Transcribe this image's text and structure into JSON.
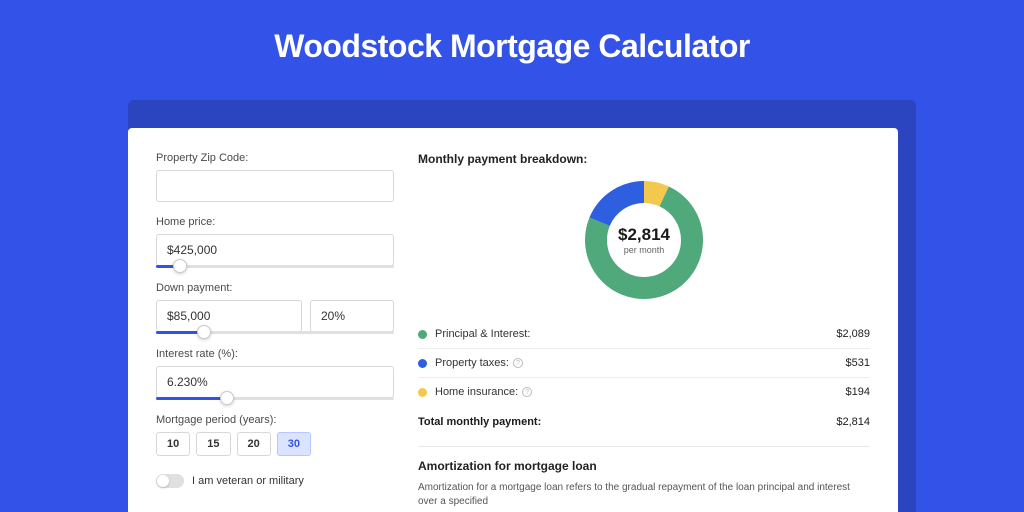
{
  "page": {
    "title": "Woodstock Mortgage Calculator",
    "bg_color": "#3353e8",
    "shadow_color": "#2b44bf",
    "card_bg": "#ffffff"
  },
  "form": {
    "zip": {
      "label": "Property Zip Code:",
      "value": ""
    },
    "price": {
      "label": "Home price:",
      "value": "$425,000",
      "slider_pct": 10
    },
    "down": {
      "label": "Down payment:",
      "amount": "$85,000",
      "pct": "20%",
      "slider_pct": 20
    },
    "rate": {
      "label": "Interest rate (%):",
      "value": "6.230%",
      "slider_pct": 30
    },
    "period": {
      "label": "Mortgage period (years):",
      "options": [
        "10",
        "15",
        "20",
        "30"
      ],
      "selected": "30"
    },
    "veteran": {
      "label": "I am veteran or military",
      "on": false
    }
  },
  "breakdown": {
    "title": "Monthly payment breakdown:",
    "center_amount": "$2,814",
    "center_sub": "per month",
    "items": [
      {
        "label": "Principal & Interest:",
        "value": "$2,089",
        "color": "#4fa97a",
        "info": false
      },
      {
        "label": "Property taxes:",
        "value": "$531",
        "color": "#2d5fe0",
        "info": true
      },
      {
        "label": "Home insurance:",
        "value": "$194",
        "color": "#f2c94c",
        "info": true
      }
    ],
    "total": {
      "label": "Total monthly payment:",
      "value": "$2,814"
    },
    "donut": {
      "radius": 48,
      "stroke": 22,
      "segments": [
        {
          "color": "#f2c94c",
          "fraction": 0.069
        },
        {
          "color": "#4fa97a",
          "fraction": 0.742
        },
        {
          "color": "#2d5fe0",
          "fraction": 0.189
        }
      ]
    }
  },
  "amort": {
    "title": "Amortization for mortgage loan",
    "text": "Amortization for a mortgage loan refers to the gradual repayment of the loan principal and interest over a specified"
  }
}
